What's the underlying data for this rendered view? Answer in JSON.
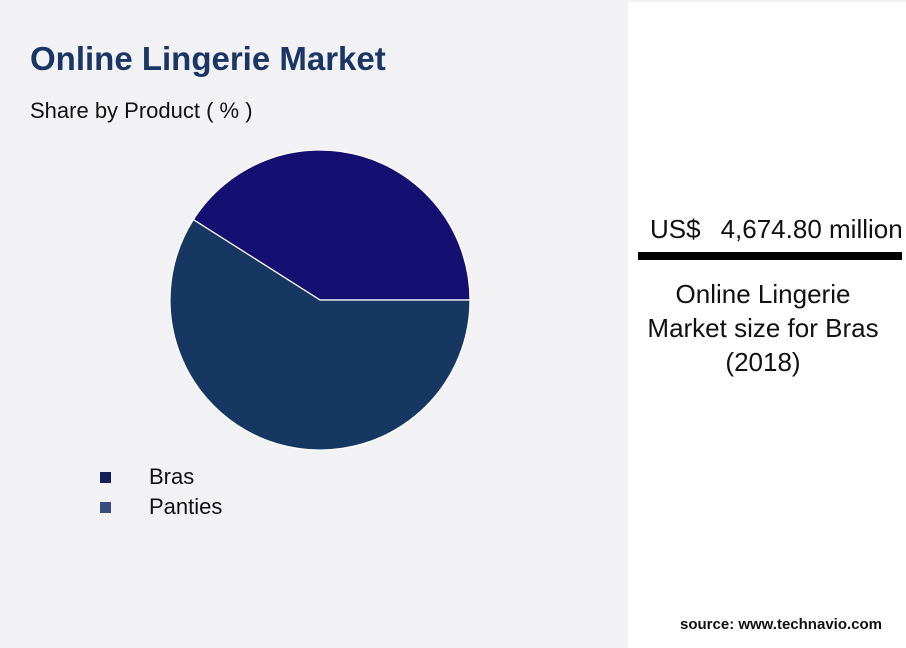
{
  "header": {
    "title": "Online Lingerie Market",
    "subtitle": "Share by Product ( % )"
  },
  "chart_data": {
    "type": "pie",
    "title": "Online Lingerie Market",
    "subtitle": "Share by Product ( % )",
    "categories": [
      "Bras",
      "Panties"
    ],
    "values": [
      41,
      59
    ],
    "colors": [
      "#160f72",
      "#173763"
    ],
    "legend": {
      "placement": "bottom-left",
      "swatch_colors": [
        "#152056",
        "#384e7f"
      ]
    },
    "slice_border_color": "#ffffff"
  },
  "stat_panel": {
    "currency": "US$",
    "value": "4,674.80 million",
    "caption_lines": [
      "Online Lingerie",
      "Market size for Bras",
      "(2018)"
    ]
  },
  "footer": {
    "source": "source: www.technavio.com"
  }
}
